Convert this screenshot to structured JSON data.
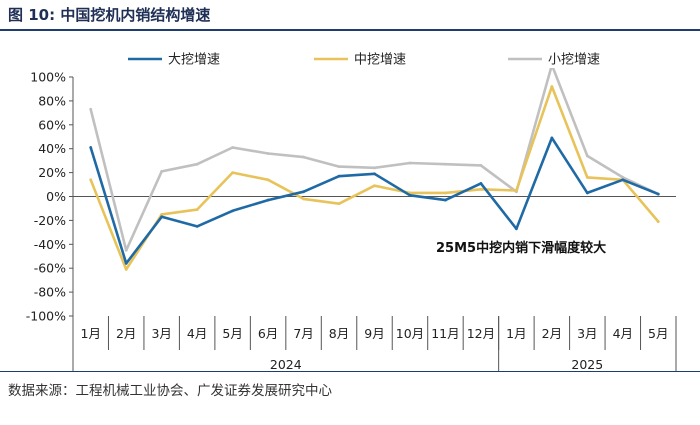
{
  "header": {
    "figure_no": "图 10:",
    "title": "中国挖机内销结构增速"
  },
  "footer": {
    "source": "数据来源：工程机械工业协会、广发证券发展研究中心"
  },
  "colors": {
    "large": "#1f6aa5",
    "medium": "#e8c35a",
    "small": "#c0c0c0",
    "axis": "#555555",
    "rule": "#1f3c6e"
  },
  "chart_data": {
    "type": "line",
    "title": "",
    "xlabel": "",
    "ylabel": "",
    "ylim": [
      -100,
      100
    ],
    "y_ticks": [
      100,
      80,
      60,
      40,
      20,
      0,
      -20,
      -40,
      -60,
      -80,
      -100
    ],
    "y_tick_labels": [
      "100%",
      "80%",
      "60%",
      "40%",
      "20%",
      "0%",
      "-20%",
      "-40%",
      "-60%",
      "-80%",
      "-100%"
    ],
    "categories": [
      "1月",
      "2月",
      "3月",
      "4月",
      "5月",
      "6月",
      "7月",
      "8月",
      "9月",
      "10月",
      "11月",
      "12月",
      "1月",
      "2月",
      "3月",
      "4月",
      "5月"
    ],
    "year_groups": [
      {
        "label": "2024",
        "start": 0,
        "end": 11
      },
      {
        "label": "2025",
        "start": 12,
        "end": 16
      }
    ],
    "legend_position": "top",
    "series": [
      {
        "name": "大挖增速",
        "color_key": "large",
        "values": [
          41,
          -56,
          -17,
          -25,
          -12,
          -3,
          4,
          17,
          19,
          1,
          -3,
          11,
          -27,
          49,
          3,
          14,
          2
        ]
      },
      {
        "name": "中挖增速",
        "color_key": "medium",
        "values": [
          14,
          -61,
          -15,
          -11,
          20,
          14,
          -2,
          -6,
          9,
          3,
          3,
          6,
          5,
          92,
          16,
          14,
          -21
        ]
      },
      {
        "name": "小挖增速",
        "color_key": "small",
        "values": [
          73,
          -45,
          21,
          27,
          41,
          36,
          33,
          25,
          24,
          28,
          27,
          26,
          4,
          110,
          34,
          16,
          2
        ]
      }
    ],
    "annotation": "25M5中挖内销下滑幅度较大"
  }
}
